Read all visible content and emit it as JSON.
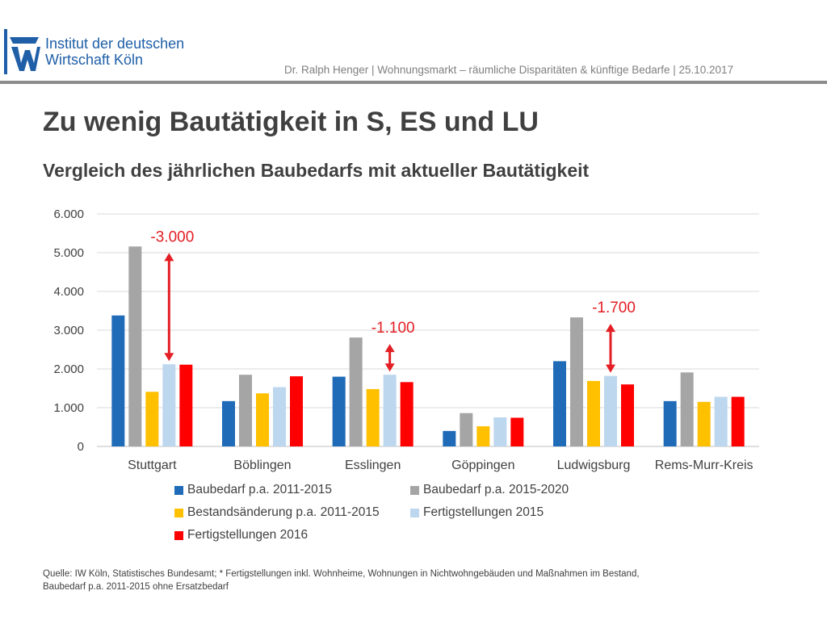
{
  "header": {
    "logo_lines": [
      "Institut der deutschen",
      "Wirtschaft Köln"
    ],
    "meta": "Dr. Ralph Henger | Wohnungsmarkt – räumliche Disparitäten & künftige Bedarfe | 25.10.2017"
  },
  "title": "Zu wenig Bautätigkeit in S, ES und LU",
  "subtitle": "Vergleich des jährlichen Baubedarfs mit aktueller Bautätigkeit",
  "chart_data": {
    "type": "bar",
    "categories": [
      "Stuttgart",
      "Böblingen",
      "Esslingen",
      "Göppingen",
      "Ludwigsburg",
      "Rems-Murr-Kreis"
    ],
    "series": [
      {
        "name": "Baubedarf p.a. 2011-2015",
        "color": "#1f6bb8",
        "values": [
          3380,
          1170,
          1800,
          400,
          2200,
          1170
        ]
      },
      {
        "name": "Baubedarf p.a. 2015-2020",
        "color": "#a5a5a5",
        "values": [
          5160,
          1850,
          2810,
          860,
          3330,
          1910
        ]
      },
      {
        "name": "Bestandsänderung p.a. 2011-2015",
        "color": "#ffc000",
        "values": [
          1410,
          1370,
          1480,
          520,
          1690,
          1150
        ]
      },
      {
        "name": "Fertigstellungen 2015",
        "color": "#bdd7ee",
        "values": [
          2120,
          1530,
          1850,
          750,
          1820,
          1280
        ]
      },
      {
        "name": "Fertigstellungen 2016",
        "color": "#ff0000",
        "values": [
          2110,
          1810,
          1660,
          740,
          1600,
          1280
        ]
      }
    ],
    "ylim": [
      0,
      6000
    ],
    "yticks": [
      "0",
      "1.000",
      "2.000",
      "3.000",
      "4.000",
      "5.000",
      "6.000"
    ],
    "grid": true,
    "legend_position": "bottom",
    "annotations": [
      {
        "category": "Stuttgart",
        "label": "-3.000",
        "from": 2120,
        "to": 5160
      },
      {
        "category": "Esslingen",
        "label": "-1.100",
        "from": 1850,
        "to": 2810
      },
      {
        "category": "Ludwigsburg",
        "label": "-1.700",
        "from": 1820,
        "to": 3330
      }
    ],
    "annotation_color": "#e31e24"
  },
  "source": {
    "line1": "Quelle: IW Köln, Statistisches Bundesamt; * Fertigstellungen inkl. Wohnheime, Wohnungen in Nichtwohngebäuden und Maßnahmen im Bestand,",
    "line2": "Baubedarf p.a. 2011-2015 ohne Ersatzbedarf"
  }
}
